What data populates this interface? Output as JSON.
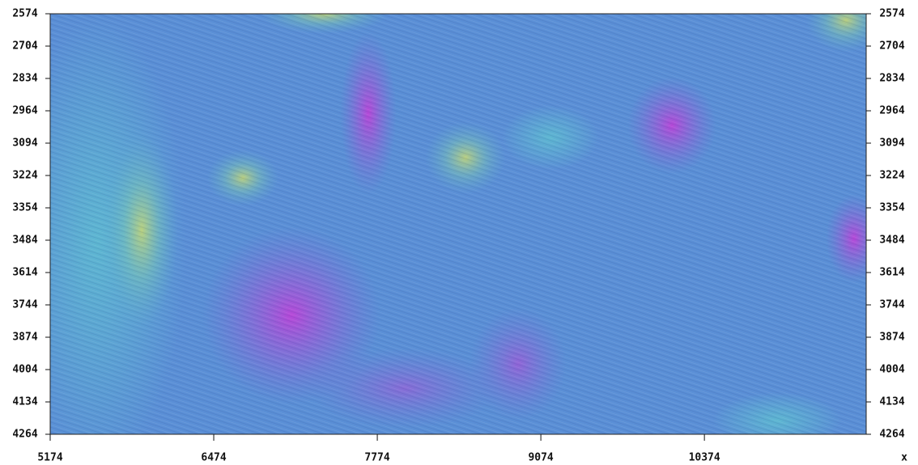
{
  "chart_data": {
    "type": "image",
    "xlabel": "x",
    "xlim": [
      5174,
      11660
    ],
    "xticks": [
      5174,
      6474,
      7774,
      9074,
      10374
    ],
    "ylim": [
      2574,
      4264
    ],
    "yticks": [
      2574,
      2704,
      2834,
      2964,
      3094,
      3224,
      3354,
      3484,
      3614,
      3744,
      3874,
      4004,
      4134,
      4264
    ],
    "y_inverted": true
  }
}
